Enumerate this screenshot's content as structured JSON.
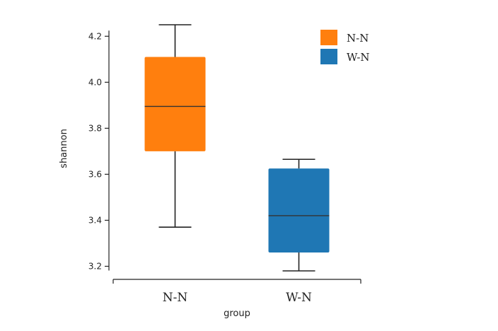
{
  "chart_data": {
    "type": "box",
    "xlabel": "group",
    "ylabel": "shannon",
    "ylim": [
      3.18,
      4.25
    ],
    "yticks": [
      3.2,
      3.4,
      3.6,
      3.8,
      4.0,
      4.2
    ],
    "ytick_labels": [
      "3.2",
      "3.4",
      "3.6",
      "3.8",
      "4.0",
      "4.2"
    ],
    "categories": [
      "N-N",
      "W-N"
    ],
    "series": [
      {
        "name": "N-N",
        "color": "#ff7f0e",
        "min": 3.37,
        "q1": 3.7,
        "median": 3.895,
        "q3": 4.11,
        "max": 4.25
      },
      {
        "name": "W-N",
        "color": "#1f77b4",
        "min": 3.18,
        "q1": 3.26,
        "median": 3.42,
        "q3": 3.625,
        "max": 3.665
      }
    ],
    "legend": {
      "position": "top-right",
      "entries": [
        {
          "label": "N-N",
          "color": "#ff7f0e"
        },
        {
          "label": "W-N",
          "color": "#1f77b4"
        }
      ]
    },
    "grid": false
  }
}
